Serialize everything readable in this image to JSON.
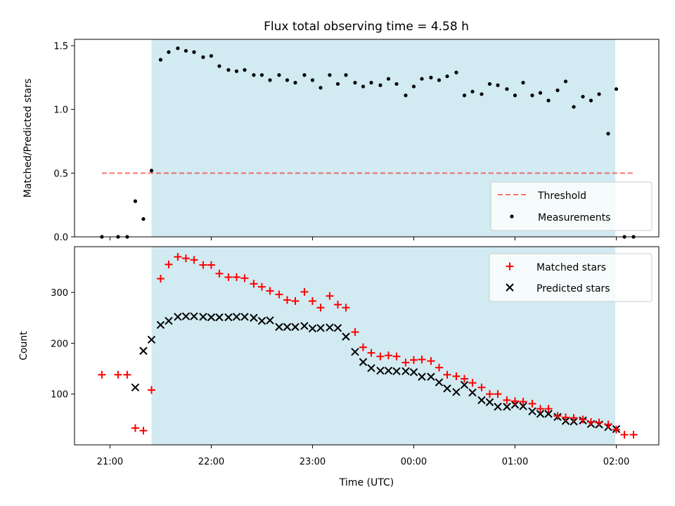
{
  "chart_data": {
    "type": "scatter",
    "title": "Flux total observing time = 4.58 h",
    "xlabel": "Time (UTC)",
    "x_ticks": [
      "21:00",
      "22:00",
      "23:00",
      "00:00",
      "01:00",
      "02:00"
    ],
    "x_tick_hours": [
      21,
      22,
      23,
      24,
      25,
      26
    ],
    "xlim": [
      20.65,
      26.42
    ],
    "observing_window": [
      21.41,
      25.99
    ],
    "colors": {
      "window": "#add8e6",
      "threshold": "#ff0000",
      "measurements": "#000000",
      "matched": "#ff0000",
      "predicted": "#000000"
    },
    "top": {
      "ylabel": "Matched/Predicted stars",
      "ylim": [
        0,
        1.55
      ],
      "y_ticks": [
        0.0,
        0.5,
        1.0,
        1.5
      ],
      "y_tick_labels": [
        "0.0",
        "0.5",
        "1.0",
        "1.5"
      ],
      "legend": {
        "location": "lower right",
        "threshold": "Threshold",
        "measurements": "Measurements"
      },
      "threshold": {
        "value": 0.5,
        "x_range": [
          20.92,
          26.17
        ]
      },
      "measurements": {
        "x": [
          20.92,
          21.08,
          21.17,
          21.25,
          21.33,
          21.41,
          21.5,
          21.58,
          21.67,
          21.75,
          21.83,
          21.92,
          22.0,
          22.08,
          22.17,
          22.25,
          22.33,
          22.42,
          22.5,
          22.58,
          22.67,
          22.75,
          22.83,
          22.92,
          23.0,
          23.08,
          23.17,
          23.25,
          23.33,
          23.42,
          23.5,
          23.58,
          23.67,
          23.75,
          23.83,
          23.92,
          24.0,
          24.08,
          24.17,
          24.25,
          24.33,
          24.42,
          24.5,
          24.58,
          24.67,
          24.75,
          24.83,
          24.92,
          25.0,
          25.08,
          25.17,
          25.25,
          25.33,
          25.42,
          25.5,
          25.58,
          25.67,
          25.75,
          25.83,
          25.92,
          26.0,
          26.08,
          26.17
        ],
        "y": [
          0.0,
          0.0,
          0.0,
          0.28,
          0.14,
          0.52,
          1.39,
          1.45,
          1.48,
          1.46,
          1.45,
          1.41,
          1.42,
          1.34,
          1.31,
          1.3,
          1.31,
          1.27,
          1.27,
          1.23,
          1.27,
          1.23,
          1.21,
          1.27,
          1.23,
          1.17,
          1.27,
          1.2,
          1.27,
          1.21,
          1.18,
          1.21,
          1.19,
          1.24,
          1.2,
          1.11,
          1.18,
          1.24,
          1.25,
          1.23,
          1.26,
          1.29,
          1.11,
          1.14,
          1.12,
          1.2,
          1.19,
          1.16,
          1.11,
          1.21,
          1.11,
          1.13,
          1.07,
          1.15,
          1.22,
          1.02,
          1.1,
          1.07,
          1.12,
          0.81,
          1.16,
          0.0,
          0.0
        ]
      }
    },
    "bottom": {
      "ylabel": "Count",
      "ylim": [
        0,
        390
      ],
      "y_ticks": [
        100,
        200,
        300
      ],
      "y_tick_labels": [
        "100",
        "200",
        "300"
      ],
      "legend": {
        "location": "upper right",
        "matched": "Matched stars",
        "predicted": "Predicted stars"
      },
      "matched_stars": {
        "x": [
          20.92,
          21.08,
          21.17,
          21.25,
          21.33,
          21.41,
          21.5,
          21.58,
          21.67,
          21.75,
          21.83,
          21.92,
          22.0,
          22.08,
          22.17,
          22.25,
          22.33,
          22.42,
          22.5,
          22.58,
          22.67,
          22.75,
          22.83,
          22.92,
          23.0,
          23.08,
          23.17,
          23.25,
          23.33,
          23.42,
          23.5,
          23.58,
          23.67,
          23.75,
          23.83,
          23.92,
          24.0,
          24.08,
          24.17,
          24.25,
          24.33,
          24.42,
          24.5,
          24.58,
          24.67,
          24.75,
          24.83,
          24.92,
          25.0,
          25.08,
          25.17,
          25.25,
          25.33,
          25.42,
          25.5,
          25.58,
          25.67,
          25.75,
          25.83,
          25.92,
          26.0,
          26.08,
          26.17
        ],
        "y": [
          138,
          138,
          138,
          33,
          28,
          108,
          327,
          355,
          370,
          367,
          364,
          354,
          354,
          337,
          330,
          330,
          328,
          317,
          311,
          303,
          296,
          285,
          283,
          301,
          283,
          270,
          293,
          276,
          270,
          222,
          192,
          181,
          174,
          176,
          174,
          162,
          167,
          168,
          165,
          152,
          138,
          135,
          130,
          122,
          113,
          100,
          100,
          88,
          86,
          85,
          81,
          71,
          71,
          57,
          54,
          53,
          50,
          45,
          44,
          40,
          30,
          20,
          20
        ]
      },
      "predicted_stars": {
        "x": [
          21.25,
          21.33,
          21.41,
          21.5,
          21.58,
          21.67,
          21.75,
          21.83,
          21.92,
          22.0,
          22.08,
          22.17,
          22.25,
          22.33,
          22.42,
          22.5,
          22.58,
          22.67,
          22.75,
          22.83,
          22.92,
          23.0,
          23.08,
          23.17,
          23.25,
          23.33,
          23.42,
          23.5,
          23.58,
          23.67,
          23.75,
          23.83,
          23.92,
          24.0,
          24.08,
          24.17,
          24.25,
          24.33,
          24.42,
          24.5,
          24.58,
          24.67,
          24.75,
          24.83,
          24.92,
          25.0,
          25.08,
          25.17,
          25.25,
          25.33,
          25.42,
          25.5,
          25.58,
          25.67,
          25.75,
          25.83,
          25.92,
          26.0
        ],
        "y": [
          113,
          185,
          207,
          236,
          244,
          252,
          253,
          253,
          252,
          251,
          251,
          251,
          252,
          252,
          250,
          244,
          245,
          232,
          232,
          232,
          234,
          229,
          230,
          231,
          230,
          213,
          183,
          163,
          151,
          146,
          146,
          145,
          145,
          143,
          134,
          134,
          123,
          111,
          104,
          118,
          103,
          88,
          84,
          75,
          75,
          79,
          76,
          66,
          61,
          61,
          55,
          47,
          46,
          48,
          41,
          40,
          35,
          31
        ]
      }
    }
  }
}
